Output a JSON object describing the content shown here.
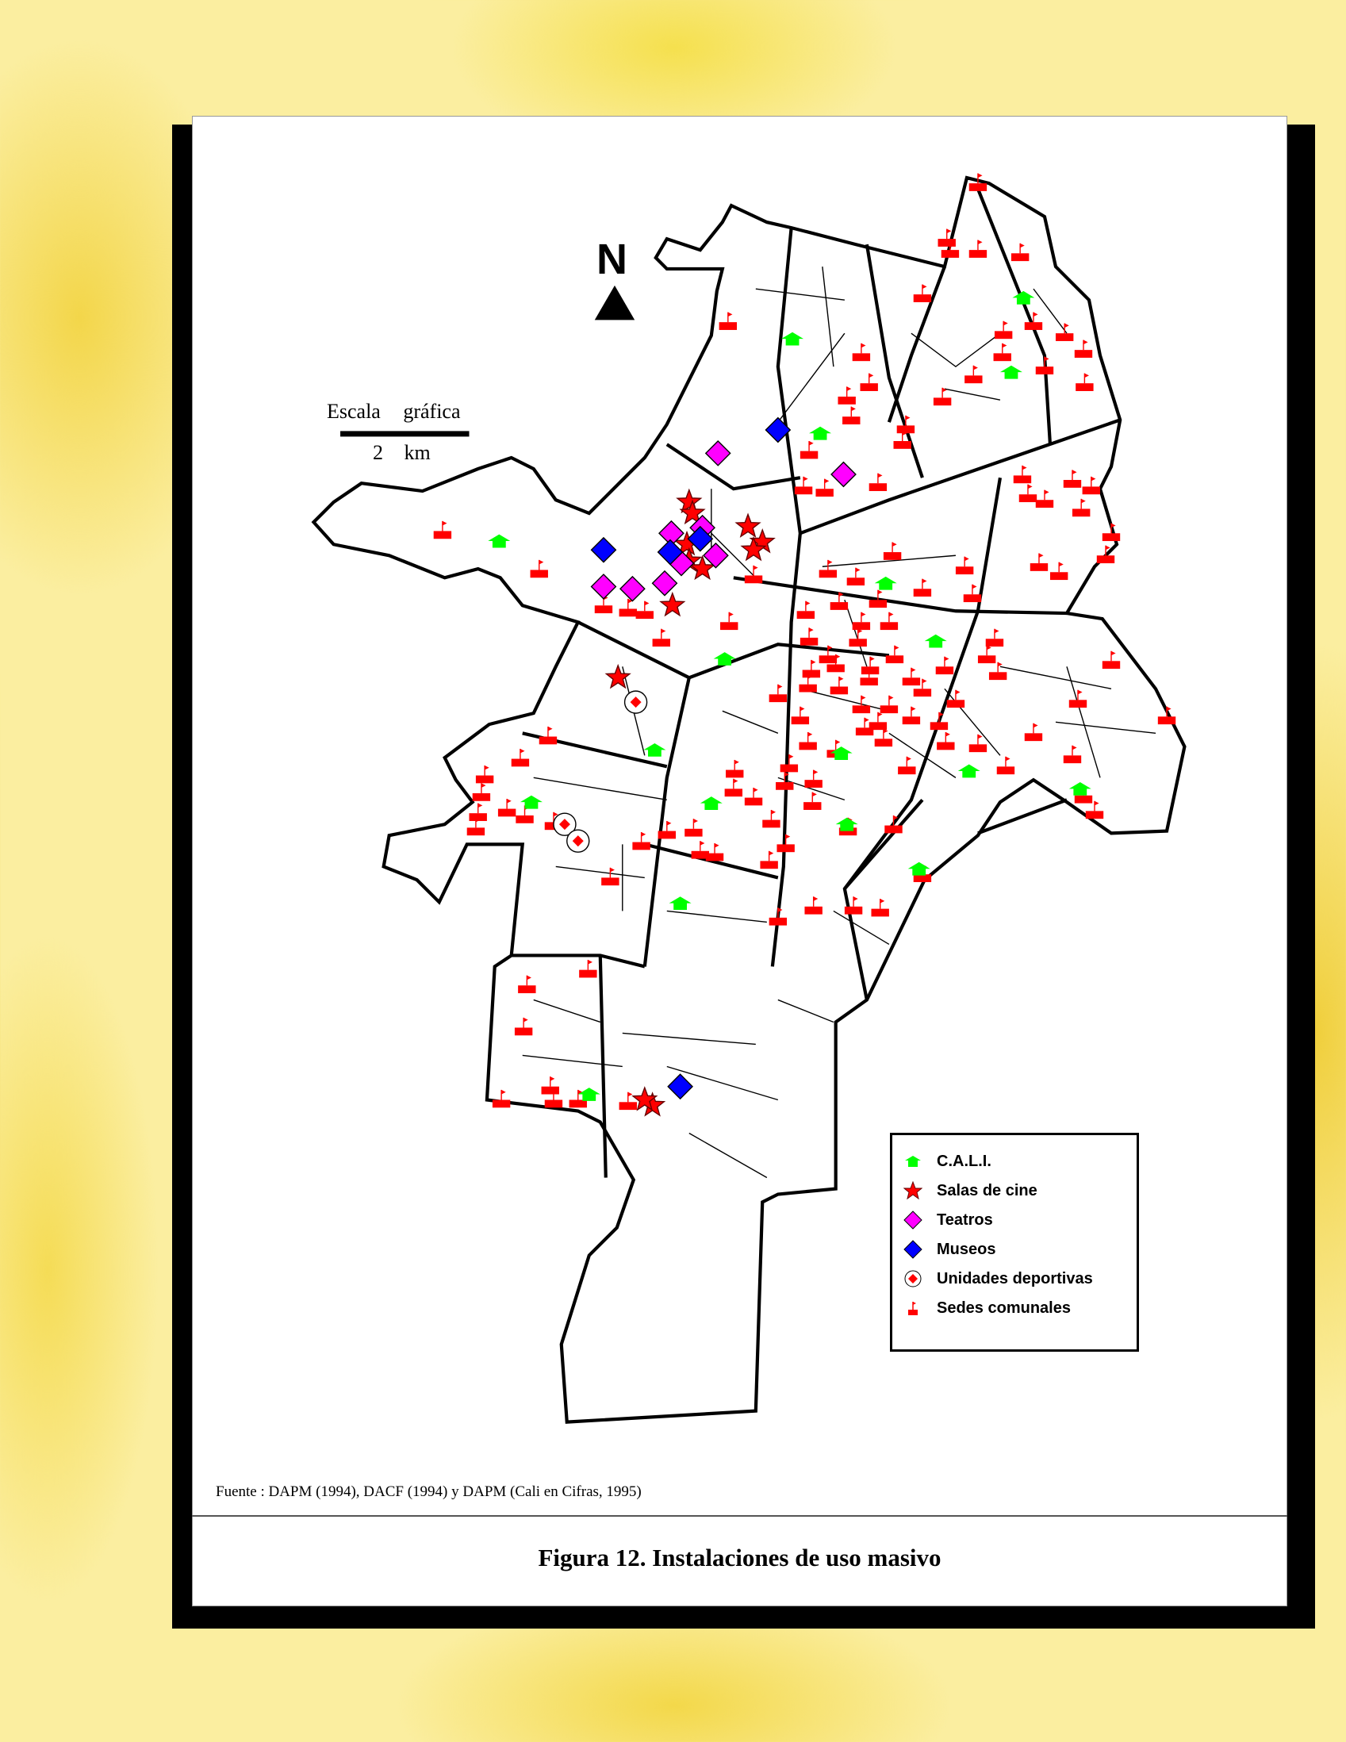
{
  "figure_title": "Figura 12. Instalaciones de uso masivo",
  "source": "Fuente : DAPM (1994), DACF (1994) y DAPM (Cali en Cifras, 1995)",
  "north_arrow": {
    "label": "N"
  },
  "scale_bar": {
    "title": "Escala gráfica",
    "value": "2 km"
  },
  "legend": [
    {
      "label": "C.A.L.I.",
      "icon": "green-house-icon",
      "color": "#00ff00"
    },
    {
      "label": "Salas de cine",
      "icon": "star-icon",
      "color": "#ff0000"
    },
    {
      "label": "Teatros",
      "icon": "diamond-icon",
      "color": "#ff00ff"
    },
    {
      "label": "Museos",
      "icon": "diamond-icon",
      "color": "#0000ff"
    },
    {
      "label": "Unidades deportivas",
      "icon": "circled-diamond-icon",
      "color": "#ff0000"
    },
    {
      "label": "Sedes comunales",
      "icon": "flag-icon",
      "color": "#ff0000"
    }
  ],
  "colors": {
    "background": "#fbeea0",
    "boundary": "#000000"
  }
}
